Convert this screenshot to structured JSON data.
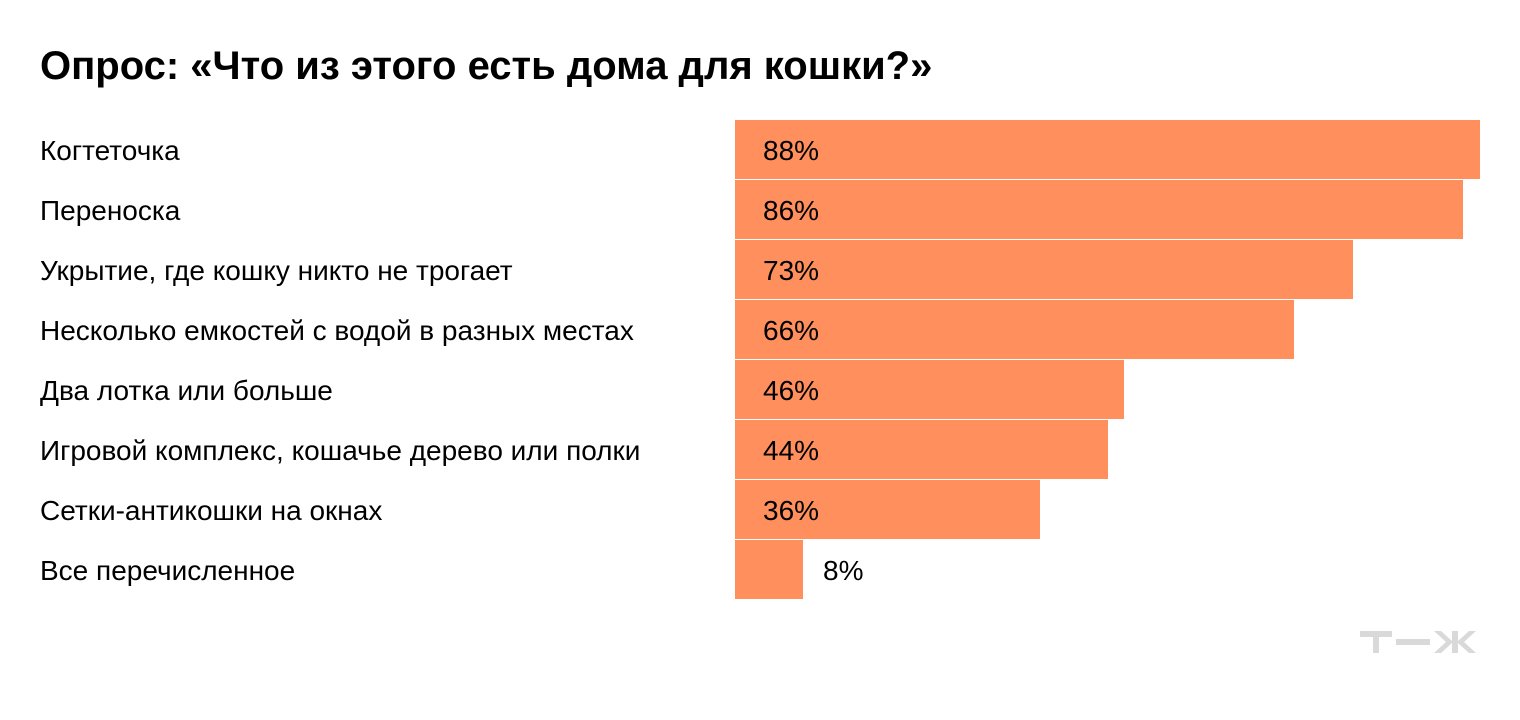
{
  "title": "Опрос: «Что из этого есть дома для кошки?»",
  "logo_text": "т—ж",
  "colors": {
    "bar": "#ff8f5c",
    "text": "#000000",
    "logo": "#d9d9d9"
  },
  "chart_data": {
    "type": "bar",
    "orientation": "horizontal",
    "title": "Опрос: «Что из этого есть дома для кошки?»",
    "categories": [
      "Когтеточка",
      "Переноска",
      "Укрытие, где кошку никто не трогает",
      "Несколько емкостей с водой в разных местах",
      "Два лотка или больше",
      "Игровой комплекс, кошачье дерево или полки",
      "Сетки-антикошки на окнах",
      "Все перечисленное"
    ],
    "values": [
      88,
      86,
      73,
      66,
      46,
      44,
      36,
      8
    ],
    "value_labels": [
      "88%",
      "86%",
      "73%",
      "66%",
      "46%",
      "44%",
      "36%",
      "8%"
    ],
    "unit": "%",
    "xlim": [
      0,
      88
    ],
    "grid": false,
    "legend": "none"
  }
}
